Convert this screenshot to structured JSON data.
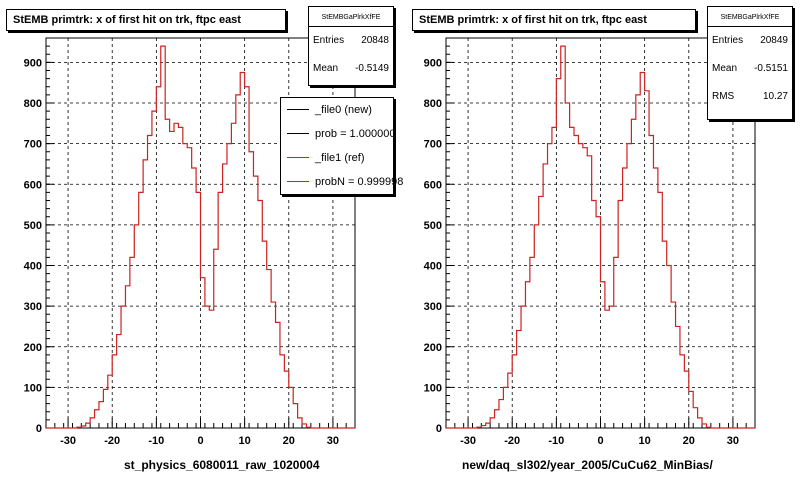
{
  "chart_data": [
    {
      "type": "line",
      "title": "StEMB primtrk: x of first hit on trk, ftpc east",
      "xlabel": "st_physics_6080011_raw_1020004",
      "ylabel": "",
      "xlim": [
        -35,
        35
      ],
      "ylim": [
        0,
        960
      ],
      "xticks": [
        -30,
        -20,
        -10,
        0,
        10,
        20,
        30
      ],
      "yticks": [
        0,
        100,
        200,
        300,
        400,
        500,
        600,
        700,
        800,
        900
      ],
      "grid": true,
      "bin_width": 1,
      "bin_start": -35,
      "series": [
        {
          "name": "_file1 (ref)",
          "color": "#cc2222",
          "values": [
            0,
            0,
            0,
            0,
            0,
            0,
            0,
            2,
            5,
            12,
            25,
            45,
            65,
            95,
            130,
            180,
            230,
            300,
            350,
            420,
            500,
            580,
            660,
            720,
            780,
            840,
            940,
            760,
            730,
            750,
            740,
            700,
            690,
            640,
            580,
            370,
            300,
            290,
            440,
            580,
            650,
            700,
            750,
            820,
            875,
            840,
            680,
            620,
            560,
            460,
            390,
            310,
            260,
            180,
            140,
            100,
            60,
            25,
            10,
            2,
            0,
            0,
            0,
            0,
            0,
            0,
            0,
            0,
            0,
            0
          ]
        }
      ],
      "stats": {
        "name": "StEMBGaPlrkXfFE",
        "entries_label": "Entries",
        "entries": "20848",
        "mean_label": "Mean",
        "mean": "-0.5149"
      },
      "legend": [
        {
          "label": "_file0 (new)",
          "color": "#000000"
        },
        {
          "label": "prob = 1.000000",
          "color": "#000000"
        },
        {
          "label": "_file1 (ref)",
          "color": "#cc2222"
        },
        {
          "label": "probN = 0.999998",
          "color": "#cc2222"
        }
      ]
    },
    {
      "type": "line",
      "title": "StEMB primtrk: x of first hit on trk, ftpc east",
      "xlabel": "new/daq_sl302/year_2005/CuCu62_MinBias/",
      "ylabel": "",
      "xlim": [
        -35,
        35
      ],
      "ylim": [
        0,
        960
      ],
      "xticks": [
        -30,
        -20,
        -10,
        0,
        10,
        20,
        30
      ],
      "yticks": [
        0,
        100,
        200,
        300,
        400,
        500,
        600,
        700,
        800,
        900
      ],
      "grid": true,
      "bin_width": 1,
      "bin_start": -35,
      "series": [
        {
          "name": "",
          "color": "#cc2222",
          "values": [
            0,
            0,
            0,
            0,
            0,
            0,
            0,
            2,
            6,
            12,
            25,
            45,
            70,
            100,
            135,
            180,
            240,
            300,
            360,
            420,
            500,
            570,
            650,
            700,
            740,
            860,
            940,
            800,
            740,
            720,
            700,
            690,
            670,
            560,
            520,
            360,
            290,
            300,
            420,
            560,
            640,
            700,
            760,
            820,
            875,
            830,
            720,
            640,
            580,
            460,
            400,
            310,
            250,
            180,
            140,
            90,
            50,
            25,
            10,
            2,
            0,
            0,
            0,
            0,
            0,
            0,
            0,
            0,
            0,
            0
          ]
        }
      ],
      "stats": {
        "name": "StEMBGaPlrkXfFE",
        "entries_label": "Entries",
        "entries": "20849",
        "mean_label": "Mean",
        "mean": "-0.5151",
        "rms_label": "RMS",
        "rms": "10.27"
      }
    }
  ]
}
